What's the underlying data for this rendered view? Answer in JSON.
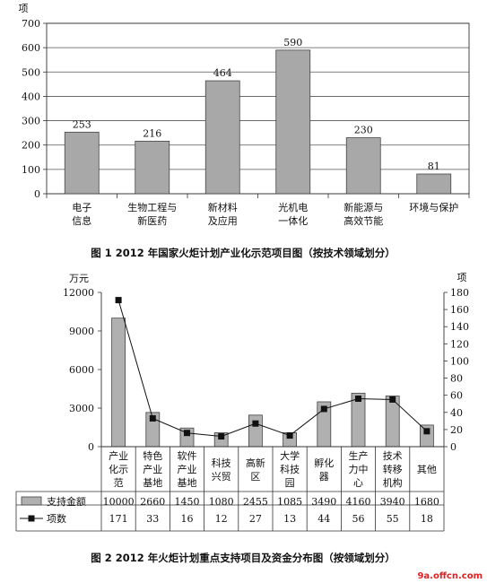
{
  "chart_data": [
    {
      "type": "bar",
      "ylabel": "项",
      "ylim": [
        0,
        700
      ],
      "yticks": [
        0,
        100,
        200,
        300,
        400,
        500,
        600,
        700
      ],
      "categories": [
        [
          "电子",
          "信息"
        ],
        [
          "生物工程与",
          "新医药"
        ],
        [
          "新材料",
          "及应用"
        ],
        [
          "光机电",
          "一体化"
        ],
        [
          "新能源与",
          "高效节能"
        ],
        [
          "环境与保护"
        ]
      ],
      "values": [
        253,
        216,
        464,
        590,
        230,
        81
      ],
      "caption": "图 1 2012 年国家火炬计划产业化示范项目图（按技术领域划分）",
      "grid": true,
      "bar_color": "#a8a8a8"
    },
    {
      "type": "bar+line",
      "left_unit": "万元",
      "right_unit": "项",
      "left_ylim": [
        0,
        12000
      ],
      "left_ticks": [
        0,
        3000,
        6000,
        9000,
        12000
      ],
      "right_ylim": [
        0,
        180
      ],
      "right_ticks": [
        0,
        20,
        40,
        60,
        80,
        100,
        120,
        140,
        160,
        180
      ],
      "categories": [
        [
          "产业",
          "化示",
          "范"
        ],
        [
          "特色",
          "产业",
          "基地"
        ],
        [
          "软件",
          "产业",
          "基地"
        ],
        [
          "科技",
          "兴贸"
        ],
        [
          "高新",
          "区"
        ],
        [
          "大学",
          "科技",
          "园"
        ],
        [
          "孵化",
          "器"
        ],
        [
          "生产",
          "力中",
          "心"
        ],
        [
          "技术",
          "转移",
          "机构"
        ],
        [
          "其他"
        ]
      ],
      "series": [
        {
          "name": "支持金额",
          "kind": "bar",
          "axis": "left",
          "values": [
            10000,
            2660,
            1450,
            1080,
            2455,
            1085,
            3490,
            4160,
            3940,
            1680
          ]
        },
        {
          "name": "项数",
          "kind": "line",
          "axis": "right",
          "values": [
            171,
            33,
            16,
            12,
            27,
            13,
            44,
            56,
            55,
            18
          ]
        }
      ],
      "table_values": {
        "支持金额": [
          "10000",
          "2660",
          "1450",
          "1080",
          "2455",
          "1085",
          "3490",
          "4160",
          "3940",
          "1680"
        ],
        "项数": [
          "171",
          "33",
          "16",
          "12",
          "27",
          "13",
          "44",
          "56",
          "55",
          "18"
        ]
      },
      "caption": "图 2 2012 年火炬计划重点支持项目及资金分布图（按领域划分）",
      "bar_color": "#b0b0b0"
    }
  ],
  "watermark": "9a.offcn.com"
}
